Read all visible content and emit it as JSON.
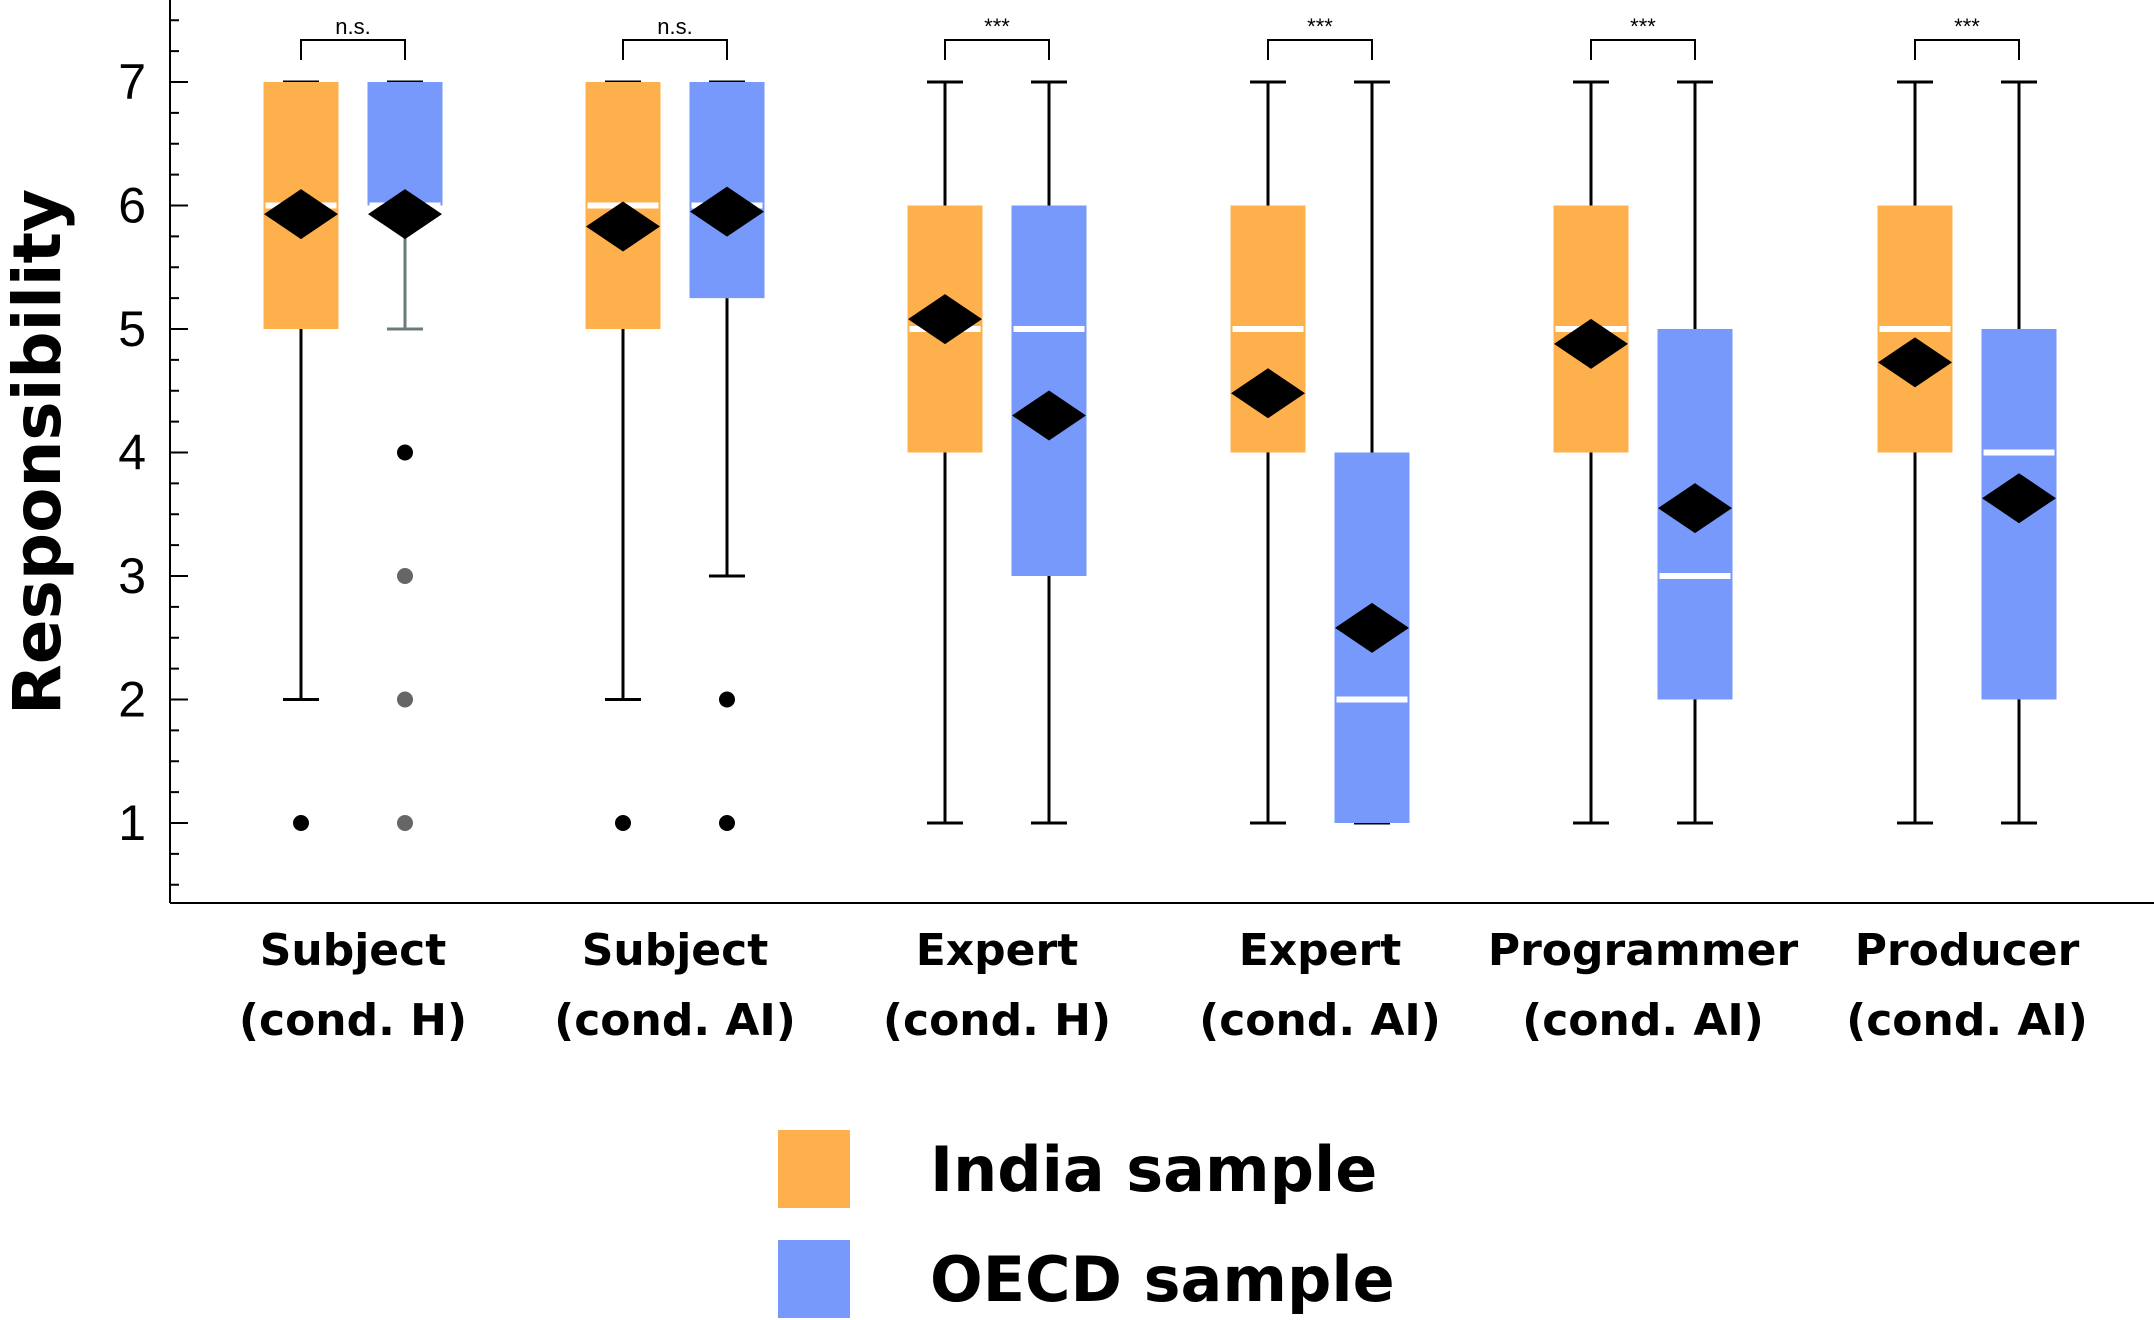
{
  "chart_data": {
    "type": "boxplot",
    "ylabel": "Responsibility",
    "xlabel": "",
    "ylim": [
      0.4,
      7.65
    ],
    "yticks": [
      "1",
      "2",
      "3",
      "4",
      "5",
      "6",
      "7"
    ],
    "colors": {
      "india": "#FDB04C",
      "oecd": "#7799FC",
      "median": "#ffffff",
      "mean_marker": "#000000"
    },
    "legend": [
      {
        "name": "India sample",
        "color": "#FDB04C"
      },
      {
        "name": "OECD sample",
        "color": "#7799FC"
      }
    ],
    "groups": [
      {
        "label_lines": [
          "Subject",
          "(cond. H)"
        ],
        "significance": "n.s.",
        "boxes": [
          {
            "sample": "India",
            "whisker_low": 2,
            "q1": 5,
            "median": 6,
            "q3": 7,
            "whisker_high": 7,
            "mean": 5.93,
            "outliers": [
              1
            ],
            "outlier_colors": [
              "#000000"
            ]
          },
          {
            "sample": "OECD",
            "whisker_low": 5,
            "q1": 6,
            "median": 6,
            "q3": 7,
            "whisker_high": 7,
            "mean": 5.93,
            "outliers": [
              4,
              3,
              2,
              1
            ],
            "outlier_colors": [
              "#000000",
              "#666666",
              "#666666",
              "#666666"
            ],
            "whisker_color": "#6b7b7b"
          }
        ]
      },
      {
        "label_lines": [
          "Subject",
          "(cond. AI)"
        ],
        "significance": "n.s.",
        "boxes": [
          {
            "sample": "India",
            "whisker_low": 2,
            "q1": 5,
            "median": 6,
            "q3": 7,
            "whisker_high": 7,
            "mean": 5.83,
            "outliers": [
              1
            ],
            "outlier_colors": [
              "#000000"
            ]
          },
          {
            "sample": "OECD",
            "whisker_low": 3,
            "q1": 5.25,
            "median": 6,
            "q3": 7,
            "whisker_high": 7,
            "mean": 5.95,
            "outliers": [
              2,
              1
            ],
            "outlier_colors": [
              "#000000",
              "#000000"
            ]
          }
        ]
      },
      {
        "label_lines": [
          "Expert",
          "(cond. H)"
        ],
        "significance": "***",
        "boxes": [
          {
            "sample": "India",
            "whisker_low": 1,
            "q1": 4,
            "median": 5,
            "q3": 6,
            "whisker_high": 7,
            "mean": 5.08,
            "outliers": [],
            "outlier_colors": []
          },
          {
            "sample": "OECD",
            "whisker_low": 1,
            "q1": 3,
            "median": 5,
            "q3": 6,
            "whisker_high": 7,
            "mean": 4.3,
            "outliers": [],
            "outlier_colors": []
          }
        ]
      },
      {
        "label_lines": [
          "Expert",
          "(cond. AI)"
        ],
        "significance": "***",
        "boxes": [
          {
            "sample": "India",
            "whisker_low": 1,
            "q1": 4,
            "median": 5,
            "q3": 6,
            "whisker_high": 7,
            "mean": 4.48,
            "outliers": [],
            "outlier_colors": []
          },
          {
            "sample": "OECD",
            "whisker_low": 1,
            "q1": 1,
            "median": 2,
            "q3": 4,
            "whisker_high": 7,
            "mean": 2.58,
            "outliers": [],
            "outlier_colors": []
          }
        ]
      },
      {
        "label_lines": [
          "Programmer",
          "(cond. AI)"
        ],
        "significance": "***",
        "boxes": [
          {
            "sample": "India",
            "whisker_low": 1,
            "q1": 4,
            "median": 5,
            "q3": 6,
            "whisker_high": 7,
            "mean": 4.88,
            "outliers": [],
            "outlier_colors": []
          },
          {
            "sample": "OECD",
            "whisker_low": 1,
            "q1": 2,
            "median": 3,
            "q3": 5,
            "whisker_high": 7,
            "mean": 3.55,
            "outliers": [],
            "outlier_colors": []
          }
        ]
      },
      {
        "label_lines": [
          "Producer",
          "(cond. AI)"
        ],
        "significance": "***",
        "boxes": [
          {
            "sample": "India",
            "whisker_low": 1,
            "q1": 4,
            "median": 5,
            "q3": 6,
            "whisker_high": 7,
            "mean": 4.73,
            "outliers": [],
            "outlier_colors": []
          },
          {
            "sample": "OECD",
            "whisker_low": 1,
            "q1": 2,
            "median": 4,
            "q3": 5,
            "whisker_high": 7,
            "mean": 3.63,
            "outliers": [],
            "outlier_colors": []
          }
        ]
      }
    ]
  }
}
